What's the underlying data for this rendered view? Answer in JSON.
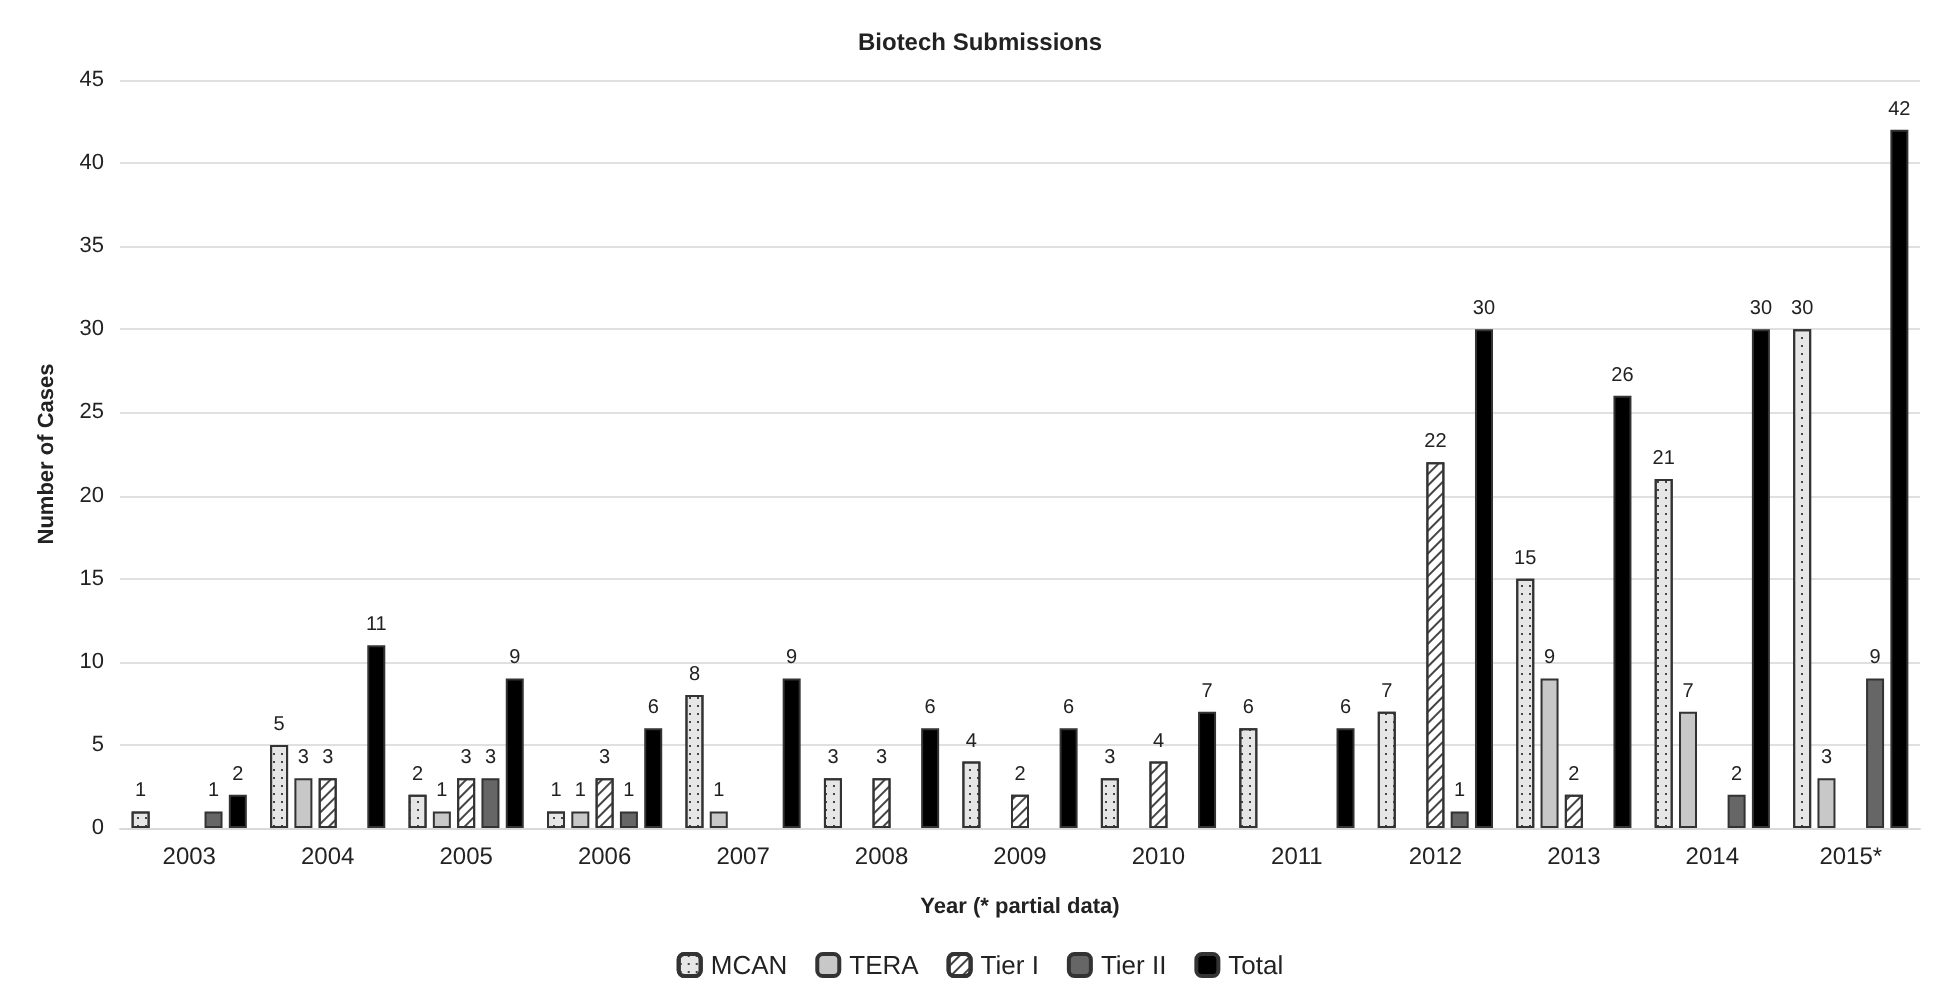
{
  "chart_data": {
    "type": "bar",
    "title": "Biotech Submissions",
    "xlabel": "Year (* partial data)",
    "ylabel": "Number of Cases",
    "categories": [
      "2003",
      "2004",
      "2005",
      "2006",
      "2007",
      "2008",
      "2009",
      "2010",
      "2011",
      "2012",
      "2013",
      "2014",
      "2015*"
    ],
    "series": [
      {
        "name": "MCAN",
        "color": "#e6e6e6",
        "values": [
          1,
          5,
          2,
          1,
          8,
          3,
          4,
          3,
          6,
          7,
          15,
          21,
          30
        ]
      },
      {
        "name": "TERA",
        "color": "#c8c8c8",
        "values": [
          null,
          3,
          1,
          1,
          1,
          null,
          null,
          null,
          null,
          null,
          9,
          7,
          3
        ]
      },
      {
        "name": "Tier I",
        "color": "#ffffff",
        "values": [
          null,
          3,
          3,
          3,
          null,
          3,
          2,
          4,
          null,
          22,
          2,
          null,
          null
        ]
      },
      {
        "name": "Tier II",
        "color": "#666666",
        "values": [
          1,
          null,
          3,
          1,
          null,
          null,
          null,
          null,
          null,
          1,
          null,
          2,
          9
        ]
      },
      {
        "name": "Total",
        "color": "#000000",
        "values": [
          2,
          11,
          9,
          6,
          9,
          6,
          6,
          7,
          6,
          30,
          26,
          30,
          42
        ]
      }
    ],
    "ylim": [
      0,
      45
    ],
    "yticks": [
      0,
      5,
      10,
      15,
      20,
      25,
      30,
      35,
      40,
      45
    ],
    "grid": "y",
    "legend": "bottom",
    "data_labels": true
  }
}
